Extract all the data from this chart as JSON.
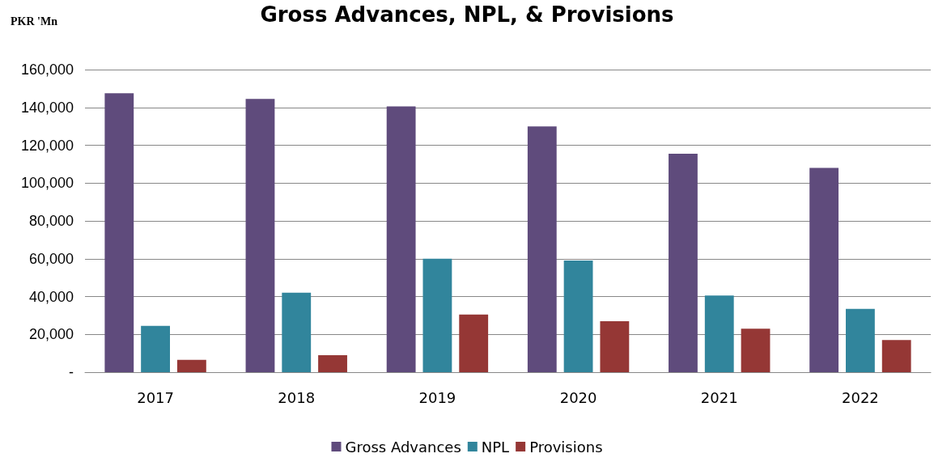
{
  "chart_data": {
    "type": "bar",
    "title": "Gross Advances, NPL, & Provisions",
    "ylabel": "PKR 'Mn",
    "categories": [
      "2017",
      "2018",
      "2019",
      "2020",
      "2021",
      "2022"
    ],
    "series": [
      {
        "name": "Gross Advances",
        "color": "#5f4b7c",
        "values": [
          147500,
          144500,
          140500,
          130000,
          115500,
          108000
        ]
      },
      {
        "name": "NPL",
        "color": "#31859c",
        "values": [
          24500,
          42000,
          60000,
          59000,
          40500,
          33500
        ]
      },
      {
        "name": "Provisions",
        "color": "#953735",
        "values": [
          6500,
          9000,
          30500,
          27000,
          23000,
          17000
        ]
      }
    ],
    "ylim": [
      0,
      160000
    ],
    "yticks": [
      {
        "value": 0,
        "label": "-"
      },
      {
        "value": 20000,
        "label": "20,000"
      },
      {
        "value": 40000,
        "label": "40,000"
      },
      {
        "value": 60000,
        "label": "60,000"
      },
      {
        "value": 80000,
        "label": "80,000"
      },
      {
        "value": 100000,
        "label": "100,000"
      },
      {
        "value": 120000,
        "label": "120,000"
      },
      {
        "value": 140000,
        "label": "140,000"
      },
      {
        "value": 160000,
        "label": "160,000"
      }
    ],
    "grid": "y",
    "legend": "bottom"
  }
}
